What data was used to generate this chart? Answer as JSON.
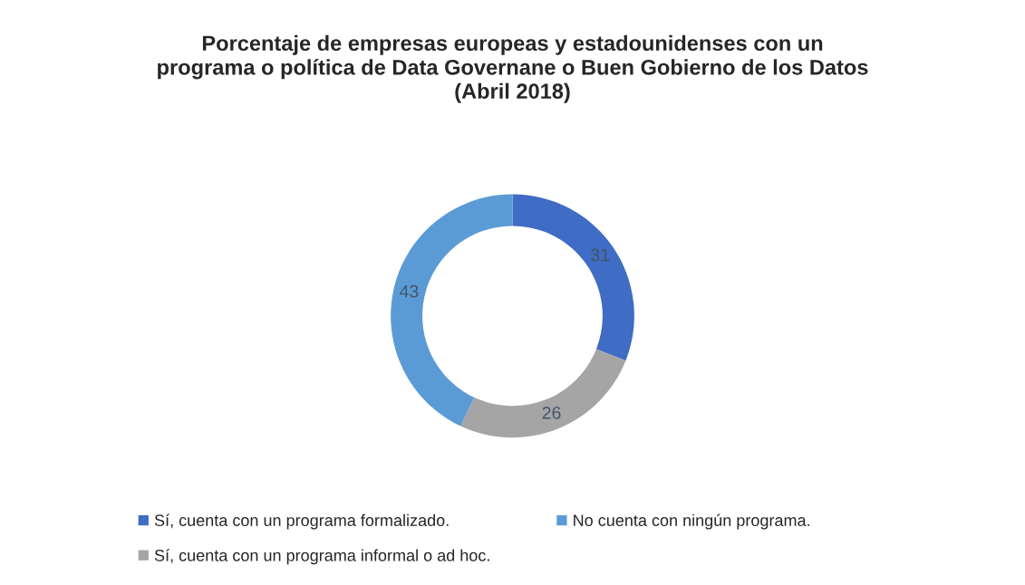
{
  "chart_data": {
    "type": "donut",
    "title": "Porcentaje de empresas europeas y estadounidenses con un\nprograma o política de Data Governane o Buen Gobierno de los Datos\n(Abril 2018)",
    "categories": [
      "Sí, cuenta con un programa formalizado.",
      "Sí, cuenta con un programa informal o ad hoc.",
      "No cuenta con ningún programa."
    ],
    "values": [
      31,
      26,
      43
    ],
    "colors": [
      "#3f6cc4",
      "#a5a5a5",
      "#5b9bd5"
    ],
    "data_labels": true,
    "legend": "bottom"
  }
}
